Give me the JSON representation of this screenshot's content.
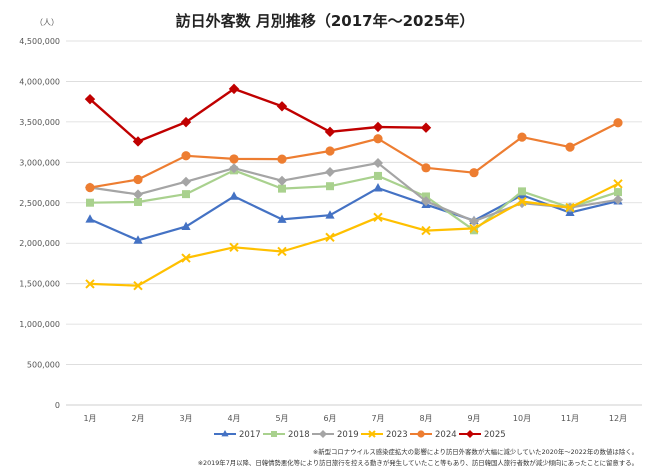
{
  "chart_data": {
    "type": "line",
    "title": "訪日外客数 月別推移（2017年～2025年）",
    "unit_label": "（人）",
    "categories": [
      "1月",
      "2月",
      "3月",
      "4月",
      "5月",
      "6月",
      "7月",
      "8月",
      "9月",
      "10月",
      "11月",
      "12月"
    ],
    "y_ticks": [
      "0",
      "500,000",
      "1,000,000",
      "1,500,000",
      "2,000,000",
      "2,500,000",
      "3,000,000",
      "3,500,000",
      "4,000,000",
      "4,500,000"
    ],
    "ylim": [
      0,
      4500000
    ],
    "grid": true,
    "legend_position": "bottom",
    "series": [
      {
        "name": "2017",
        "color": "#4472C4",
        "marker": "triangle",
        "values": [
          2296000,
          2036000,
          2205000,
          2579000,
          2294000,
          2346000,
          2682000,
          2478000,
          2280000,
          2595000,
          2378000,
          2521000
        ]
      },
      {
        "name": "2018",
        "color": "#A9D18E",
        "marker": "square",
        "values": [
          2501000,
          2510000,
          2607000,
          2901000,
          2675000,
          2705000,
          2832000,
          2578000,
          2160000,
          2641000,
          2441000,
          2632000
        ]
      },
      {
        "name": "2019",
        "color": "#A5A5A5",
        "marker": "diamond",
        "values": [
          2689000,
          2604000,
          2760000,
          2927000,
          2773000,
          2880000,
          2991000,
          2520000,
          2272000,
          2496000,
          2441000,
          2537000
        ]
      },
      {
        "name": "2023",
        "color": "#FFC000",
        "marker": "x",
        "values": [
          1497000,
          1475000,
          1817000,
          1949000,
          1898000,
          2073000,
          2320000,
          2156000,
          2183000,
          2516000,
          2441000,
          2734000
        ]
      },
      {
        "name": "2024",
        "color": "#ED7D31",
        "marker": "circle",
        "values": [
          2688000,
          2788000,
          3081000,
          3042000,
          3040000,
          3140000,
          3292000,
          2932000,
          2872000,
          3312000,
          3188000,
          3489000
        ]
      },
      {
        "name": "2025",
        "color": "#C00000",
        "marker": "diamond",
        "values": [
          3781000,
          3258000,
          3497000,
          3908000,
          3693000,
          3377000,
          3437000,
          3428000,
          null,
          null,
          null,
          null
        ]
      }
    ]
  },
  "notes": [
    "※新型コロナウイルス感染症拡大の影響により訪日外客数が大幅に減少していた2020年～2022年の数値は除く。",
    "※2019年7月以降、日韓情勢悪化等により訪日旅行を控える動きが発生していたこと等もあり、訪日韓国人旅行者数が減少傾向にあったことに留意する。"
  ]
}
